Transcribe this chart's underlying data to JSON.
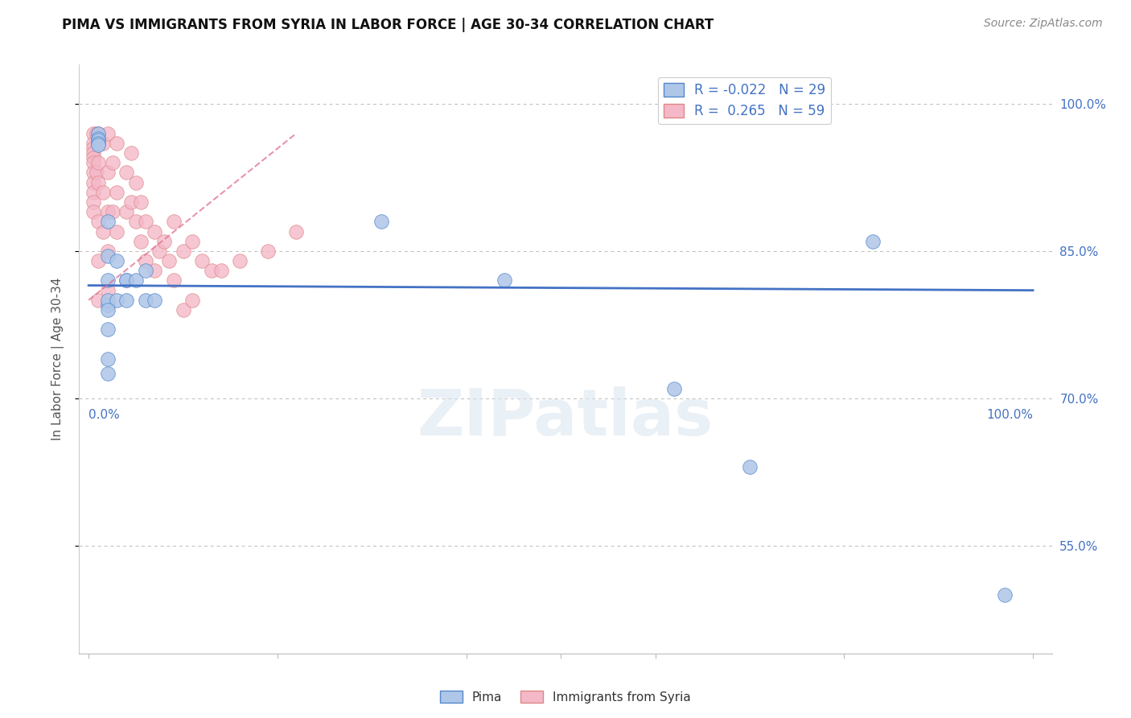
{
  "title": "PIMA VS IMMIGRANTS FROM SYRIA IN LABOR FORCE | AGE 30-34 CORRELATION CHART",
  "source_text": "Source: ZipAtlas.com",
  "ylabel": "In Labor Force | Age 30-34",
  "blue_label": "Pima",
  "pink_label": "Immigrants from Syria",
  "blue_R": -0.022,
  "blue_N": 29,
  "pink_R": 0.265,
  "pink_N": 59,
  "xlim": [
    -0.01,
    1.02
  ],
  "ylim": [
    0.44,
    1.04
  ],
  "yticks": [
    0.55,
    0.7,
    0.85,
    1.0
  ],
  "ytick_labels": [
    "55.0%",
    "70.0%",
    "85.0%",
    "100.0%"
  ],
  "xtick_left_label": "0.0%",
  "xtick_right_label": "100.0%",
  "blue_color": "#aec6e8",
  "blue_edge_color": "#5588cc",
  "blue_line_color": "#4472c4",
  "pink_color": "#f4b8c8",
  "pink_edge_color": "#dd8888",
  "pink_line_color": "#e07090",
  "watermark_text": "ZIPatlas",
  "blue_x": [
    0.01,
    0.01,
    0.01,
    0.01,
    0.01,
    0.02,
    0.02,
    0.02,
    0.02,
    0.02,
    0.03,
    0.03,
    0.04,
    0.04,
    0.04,
    0.05,
    0.06,
    0.06,
    0.07,
    0.02,
    0.02,
    0.02,
    0.02,
    0.31,
    0.44,
    0.62,
    0.7,
    0.83,
    0.97
  ],
  "blue_y": [
    0.97,
    0.965,
    0.963,
    0.96,
    0.958,
    0.88,
    0.845,
    0.82,
    0.795,
    0.8,
    0.84,
    0.8,
    0.82,
    0.8,
    0.82,
    0.82,
    0.83,
    0.8,
    0.8,
    0.79,
    0.77,
    0.74,
    0.725,
    0.88,
    0.82,
    0.71,
    0.63,
    0.86,
    0.5
  ],
  "pink_x": [
    0.005,
    0.005,
    0.005,
    0.005,
    0.005,
    0.005,
    0.005,
    0.005,
    0.005,
    0.005,
    0.005,
    0.008,
    0.008,
    0.01,
    0.01,
    0.01,
    0.01,
    0.01,
    0.01,
    0.015,
    0.015,
    0.015,
    0.02,
    0.02,
    0.02,
    0.02,
    0.02,
    0.025,
    0.025,
    0.03,
    0.03,
    0.03,
    0.04,
    0.04,
    0.045,
    0.045,
    0.05,
    0.05,
    0.055,
    0.055,
    0.06,
    0.06,
    0.07,
    0.07,
    0.075,
    0.08,
    0.085,
    0.09,
    0.09,
    0.1,
    0.1,
    0.11,
    0.11,
    0.12,
    0.13,
    0.14,
    0.16,
    0.19,
    0.22
  ],
  "pink_y": [
    0.97,
    0.96,
    0.955,
    0.95,
    0.945,
    0.94,
    0.93,
    0.92,
    0.91,
    0.9,
    0.89,
    0.97,
    0.93,
    0.97,
    0.94,
    0.92,
    0.88,
    0.84,
    0.8,
    0.96,
    0.91,
    0.87,
    0.97,
    0.93,
    0.89,
    0.85,
    0.81,
    0.94,
    0.89,
    0.96,
    0.91,
    0.87,
    0.93,
    0.89,
    0.95,
    0.9,
    0.92,
    0.88,
    0.9,
    0.86,
    0.88,
    0.84,
    0.87,
    0.83,
    0.85,
    0.86,
    0.84,
    0.88,
    0.82,
    0.85,
    0.79,
    0.86,
    0.8,
    0.84,
    0.83,
    0.83,
    0.84,
    0.85,
    0.87
  ],
  "blue_line_x": [
    0.0,
    1.0
  ],
  "blue_line_y": [
    0.815,
    0.81
  ],
  "pink_line_x": [
    0.0,
    0.22
  ],
  "pink_line_y": [
    0.8,
    0.97
  ],
  "background_color": "#ffffff",
  "title_fontsize": 12,
  "tick_color": "#4472c4",
  "axis_label_color": "#555555",
  "legend_fontsize": 12,
  "dot_size": 160
}
